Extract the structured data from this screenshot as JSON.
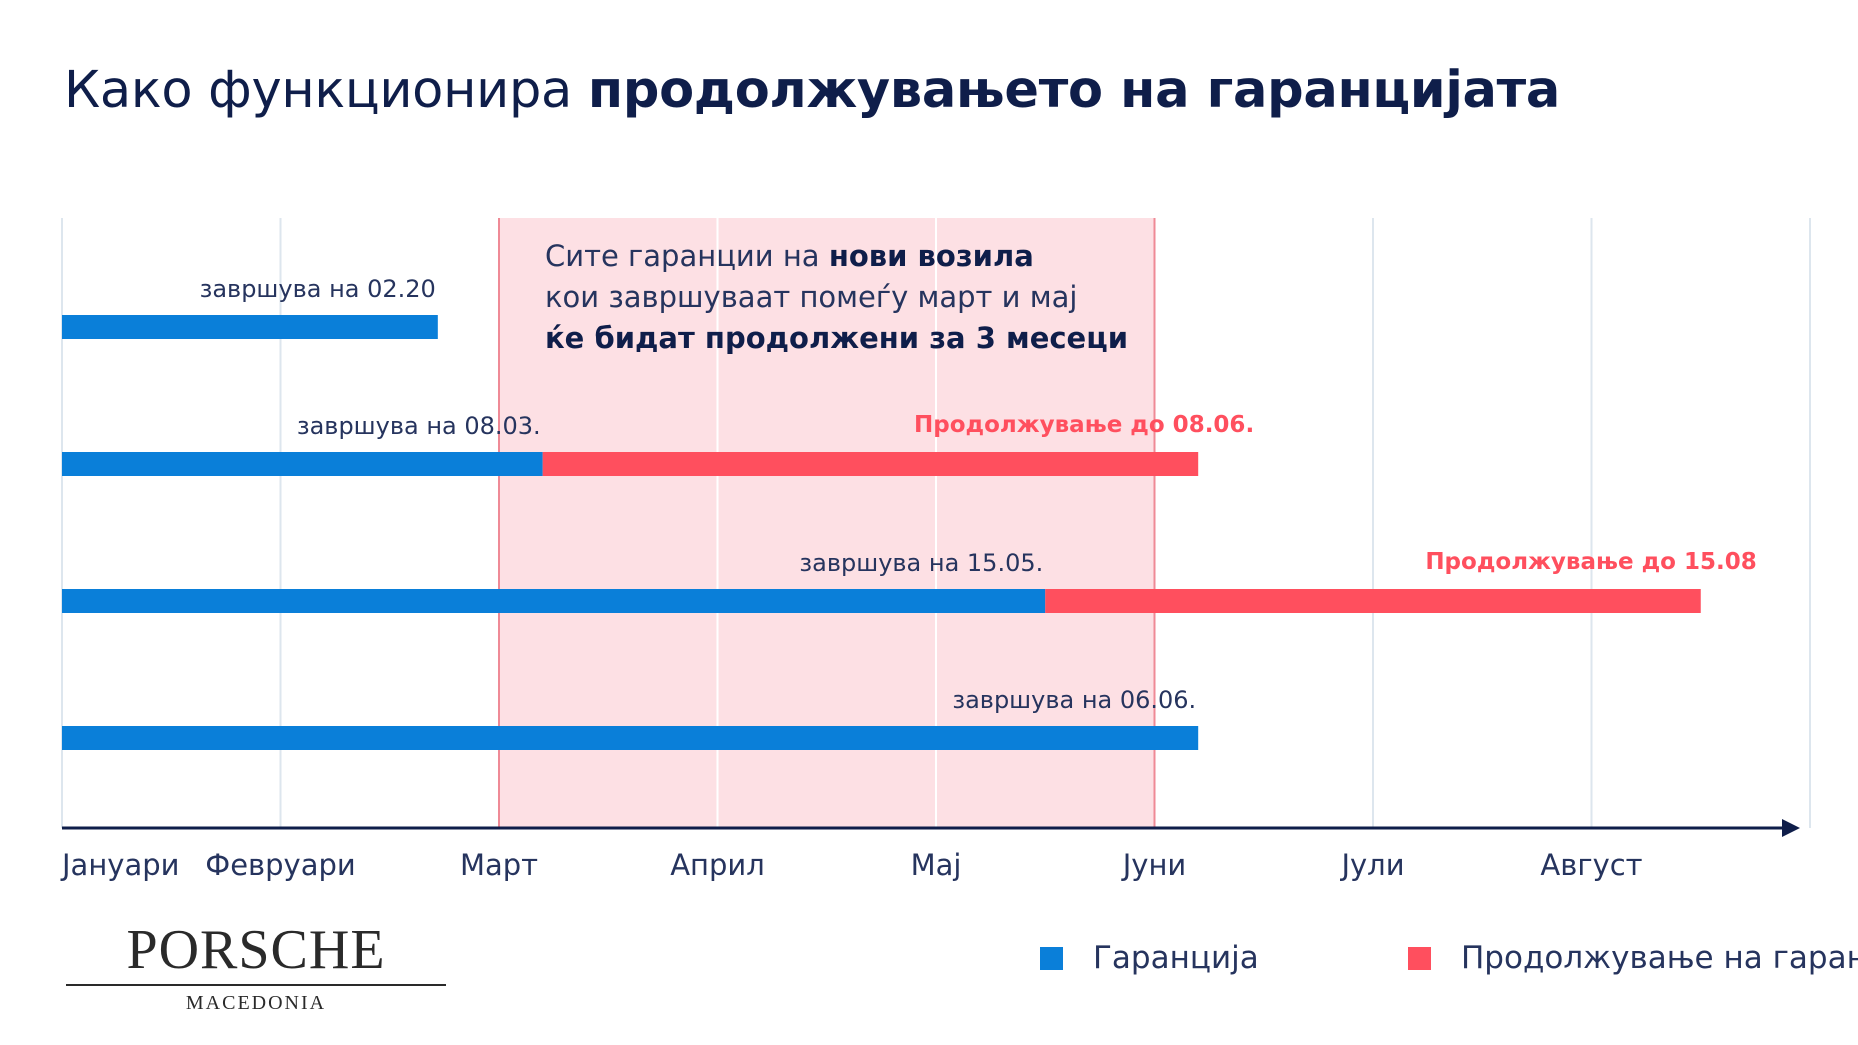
{
  "title": {
    "light": "Како функционира",
    "bold": "продолжувањето на гаранцијата"
  },
  "note": {
    "line1_light": "Сите гаранции на",
    "line1_bold": "нови возила",
    "line2": "кои завршуваат помеѓу март и мај",
    "line3_bold": "ќе бидат продолжени за 3 месеци"
  },
  "brand": {
    "name": "PORSCHE",
    "sub": "MACEDONIA"
  },
  "legend": [
    {
      "label": "Гаранција",
      "color": "#0a7fd9"
    },
    {
      "label": "Продолжување на гаранци",
      "color": "#ff4f5e"
    }
  ],
  "colors": {
    "warranty": "#0a7fd9",
    "extension": "#ff4f5e",
    "highlight_fill": "#fde0e4",
    "highlight_border": "#ef8a96",
    "grid": "#dde6ee",
    "axis": "#0f1e4a"
  },
  "chart_data": {
    "type": "bar",
    "orientation": "horizontal",
    "x_unit": "month",
    "categories": [
      "Јануари",
      "Февруари",
      "Март",
      "Април",
      "Мај",
      "Јуни",
      "Јули",
      "Август"
    ],
    "xlim": [
      0,
      8
    ],
    "highlight_range": [
      2,
      5
    ],
    "grid": true,
    "legend_position": "bottom-right",
    "series": [
      {
        "name": "Гаранција",
        "color": "#0a7fd9"
      },
      {
        "name": "Продолжување на гаранци",
        "color": "#ff4f5e"
      }
    ],
    "rows": [
      {
        "warranty_end": 1.72,
        "warranty_label": "завршува на 02.20",
        "extension_end": null,
        "extension_label": ""
      },
      {
        "warranty_end": 2.2,
        "warranty_label": "завршува на 08.03.",
        "extension_end": 5.2,
        "extension_label": "Продолжување до 08.06."
      },
      {
        "warranty_end": 4.5,
        "warranty_label": "завршува на 15.05.",
        "extension_end": 7.5,
        "extension_label": "Продолжување до 15.08"
      },
      {
        "warranty_end": 5.2,
        "warranty_label": "завршува на 06.06.",
        "extension_end": null,
        "extension_label": ""
      }
    ]
  }
}
